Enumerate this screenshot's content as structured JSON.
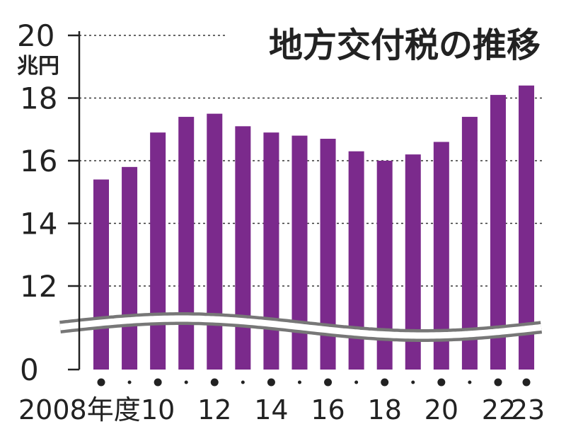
{
  "chart_data": {
    "type": "bar",
    "title": "地方交付税の推移",
    "yunit": "兆円",
    "color": "#7b2a8c",
    "axis_break": true,
    "ylim": [
      0,
      20
    ],
    "yticks": [
      {
        "value": 0,
        "label": "0"
      },
      {
        "value": 12,
        "label": "12"
      },
      {
        "value": 14,
        "label": "14"
      },
      {
        "value": 16,
        "label": "16"
      },
      {
        "value": 18,
        "label": "18"
      },
      {
        "value": 20,
        "label": "20"
      }
    ],
    "gridlines": [
      12,
      14,
      16,
      18,
      20
    ],
    "categories": [
      "2008",
      "2009",
      "2010",
      "2011",
      "2012",
      "2013",
      "2014",
      "2015",
      "2016",
      "2017",
      "2018",
      "2019",
      "2020",
      "2021",
      "2022",
      "2023"
    ],
    "values": [
      15.4,
      15.8,
      16.9,
      17.4,
      17.5,
      17.1,
      16.9,
      16.8,
      16.7,
      16.3,
      16.0,
      16.2,
      16.6,
      17.4,
      18.1,
      18.4
    ],
    "xtick_labels": [
      {
        "index": 0,
        "label": "2008年度"
      },
      {
        "index": 2,
        "label": "10"
      },
      {
        "index": 4,
        "label": "12"
      },
      {
        "index": 6,
        "label": "14"
      },
      {
        "index": 8,
        "label": "16"
      },
      {
        "index": 10,
        "label": "18"
      },
      {
        "index": 12,
        "label": "20"
      },
      {
        "index": 14,
        "label": "22"
      },
      {
        "index": 15,
        "label": "23"
      }
    ]
  }
}
